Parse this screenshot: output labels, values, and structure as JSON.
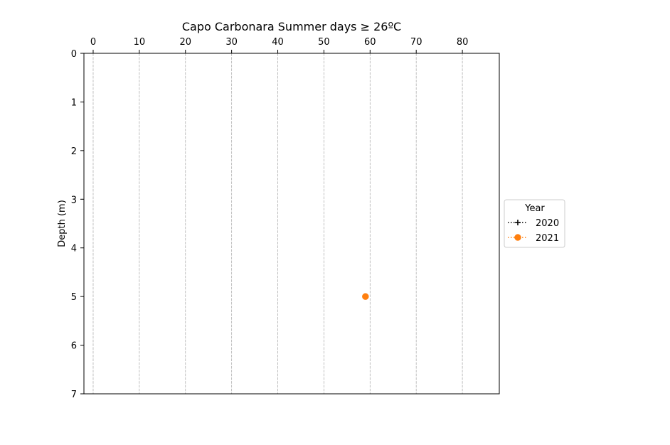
{
  "chart_data": {
    "type": "scatter",
    "title": "Capo Carbonara Summer days ≥ 26ºC",
    "xlabel": "",
    "ylabel": "Depth (m)",
    "x_axis_position": "top",
    "xlim": [
      -2,
      88
    ],
    "ylim": [
      7,
      0
    ],
    "y_inverted": true,
    "x_ticks": [
      0,
      10,
      20,
      30,
      40,
      50,
      60,
      70,
      80
    ],
    "y_ticks": [
      0,
      1,
      2,
      3,
      4,
      5,
      6,
      7
    ],
    "grid": {
      "x": true,
      "y": false,
      "style": "dashed",
      "color": "#b0b0b0"
    },
    "legend": {
      "title": "Year",
      "placement": "center-right-outside"
    },
    "series": [
      {
        "name": "2020",
        "color": "#000000",
        "linestyle": "dotted",
        "marker": "plus",
        "points": []
      },
      {
        "name": "2021",
        "color": "#ff7f0e",
        "linestyle": "dotted",
        "marker": "circle",
        "points": [
          {
            "x": 59,
            "y": 5
          }
        ]
      }
    ]
  }
}
